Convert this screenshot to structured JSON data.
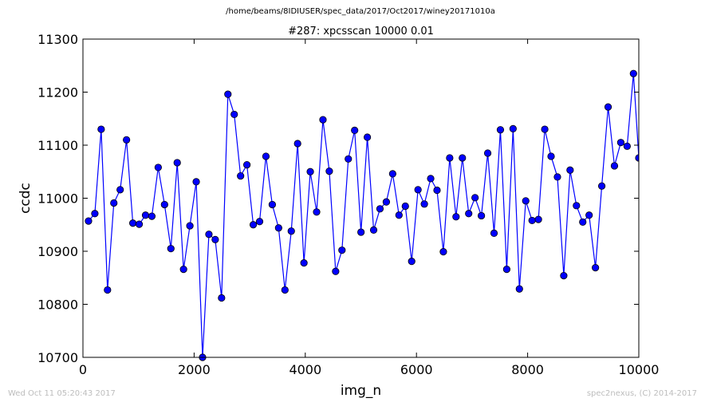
{
  "figure": {
    "suptitle": "/home/beams/8IDIUSER/spec_data/2017/Oct2017/winey20171010a",
    "footer_left": "Wed Oct 11 05:20:43 2017",
    "footer_right": "spec2nexus, (C) 2014-2017"
  },
  "chart_data": {
    "type": "line",
    "title": "#287: xpcsscan 10000 0.01",
    "xlabel": "img_n",
    "ylabel": "ccdc",
    "xlim": [
      0,
      10000
    ],
    "ylim": [
      10700,
      11300
    ],
    "xticks": [
      0,
      2000,
      4000,
      6000,
      8000,
      10000
    ],
    "yticks": [
      10700,
      10800,
      10900,
      11000,
      11100,
      11200,
      11300
    ],
    "grid": false,
    "legend": "none",
    "series": [
      {
        "color": "#0000ff",
        "marker": "circle",
        "x": [
          100,
          214,
          328,
          442,
          556,
          670,
          784,
          898,
          1012,
          1126,
          1240,
          1354,
          1468,
          1582,
          1696,
          1810,
          1924,
          2038,
          2152,
          2266,
          2380,
          2494,
          2608,
          2722,
          2836,
          2950,
          3064,
          3178,
          3292,
          3406,
          3520,
          3634,
          3748,
          3862,
          3976,
          4090,
          4204,
          4318,
          4432,
          4546,
          4660,
          4774,
          4888,
          5002,
          5116,
          5230,
          5344,
          5458,
          5572,
          5686,
          5800,
          5914,
          6028,
          6142,
          6256,
          6370,
          6484,
          6598,
          6712,
          6826,
          6940,
          7054,
          7168,
          7282,
          7396,
          7510,
          7624,
          7738,
          7852,
          7966,
          8080,
          8194,
          8308,
          8422,
          8536,
          8650,
          8764,
          8878,
          8992,
          9106,
          9220,
          9334,
          9448,
          9562,
          9676,
          9790,
          9904,
          10000
        ],
        "y": [
          10957,
          10971,
          11130,
          10827,
          10991,
          11016,
          11110,
          10953,
          10951,
          10968,
          10966,
          11058,
          10988,
          10905,
          11067,
          10866,
          10948,
          11031,
          10700,
          10932,
          10922,
          10812,
          11196,
          11158,
          11042,
          11063,
          10950,
          10956,
          11079,
          10988,
          10944,
          10827,
          10938,
          11103,
          10878,
          11050,
          10974,
          11148,
          11051,
          10862,
          10902,
          11074,
          11128,
          10936,
          11115,
          10940,
          10980,
          10993,
          11046,
          10968,
          10985,
          10881,
          11016,
          10989,
          11037,
          11015,
          10899,
          11076,
          10965,
          11076,
          10971,
          11001,
          10967,
          11085,
          10934,
          11129,
          10866,
          11131,
          10829,
          10995,
          10958,
          10960,
          11130,
          11079,
          11040,
          10854,
          11053,
          10986,
          10955,
          10968,
          10869,
          11023,
          11172,
          11061,
          11105,
          11098,
          11235,
          11076
        ]
      }
    ]
  }
}
